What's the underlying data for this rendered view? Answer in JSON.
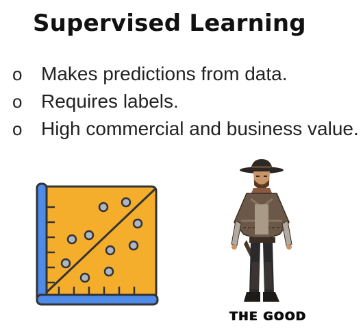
{
  "slide": {
    "title": "Supervised Learning",
    "bullets": [
      {
        "marker": "o",
        "text": "Makes predictions from data."
      },
      {
        "marker": "o",
        "text": "Requires labels."
      },
      {
        "marker": "o",
        "text": "High commercial and business value."
      }
    ]
  },
  "illustration": {
    "icon": "scatter-plot-icon",
    "panel_color": "#F5AE2C",
    "axis_color": "#4F8BE8",
    "outline_color": "#333333",
    "point_color": "#AEB6C3"
  },
  "figure": {
    "icon": "cowboy-illustration",
    "caption": "THE GOOD"
  }
}
